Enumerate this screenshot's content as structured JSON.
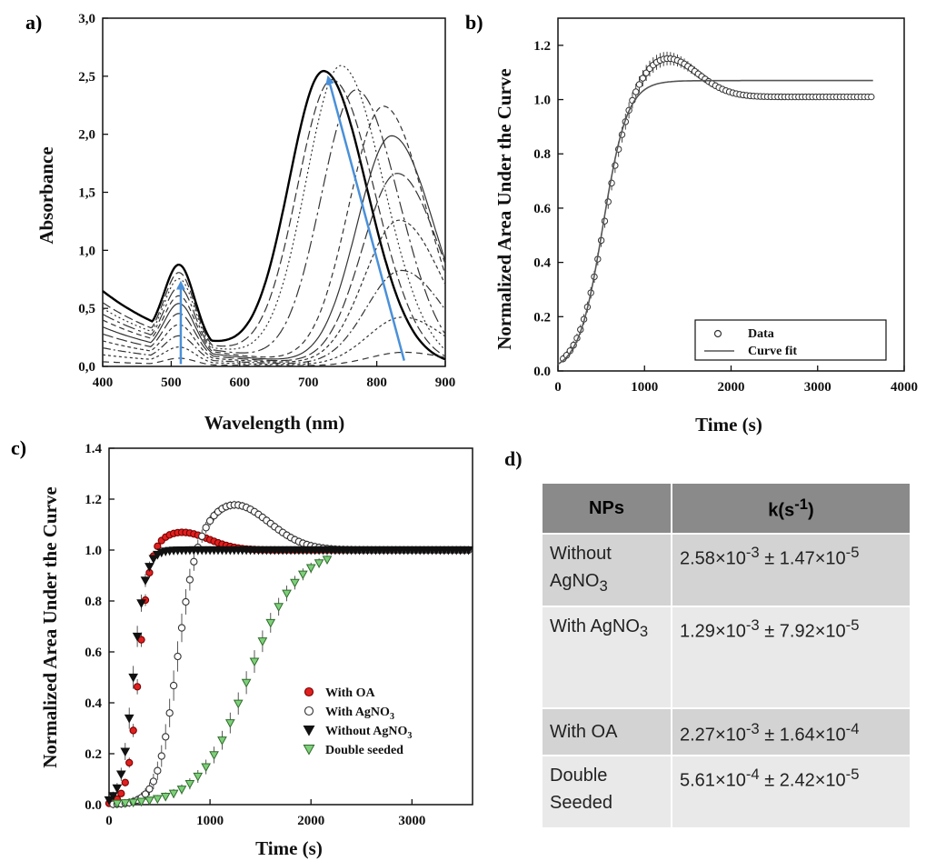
{
  "figure": {
    "panels": [
      {
        "letter": "a)",
        "chart_data": {
          "type": "line",
          "xlabel": "Wavelength (nm)",
          "ylabel": "Absorbance",
          "xlim": [
            400,
            900
          ],
          "ylim": [
            0.0,
            3.0
          ],
          "xticks": [
            "400",
            "500",
            "600",
            "700",
            "800",
            "900"
          ],
          "yticks": [
            "0,0",
            "0,5",
            "1,0",
            "1,5",
            "2,0",
            "2,5",
            "3,0"
          ],
          "arrow_color": "#4a90d9",
          "arrows": [
            {
              "from": [
                514,
                0.02
              ],
              "to": [
                514,
                0.7
              ]
            },
            {
              "from": [
                840,
                0.05
              ],
              "to": [
                730,
                2.47
              ]
            }
          ],
          "curves": [
            {
              "transverse": 0.7,
              "peak_nm": 723,
              "peak": 2.48,
              "floor": 0.65
            },
            {
              "transverse": 0.66,
              "peak_nm": 735,
              "peak": 2.42,
              "floor": 0.55
            },
            {
              "transverse": 0.62,
              "peak_nm": 748,
              "peak": 2.55,
              "floor": 0.5
            },
            {
              "transverse": 0.56,
              "peak_nm": 770,
              "peak": 2.35,
              "floor": 0.45
            },
            {
              "transverse": 0.5,
              "peak_nm": 810,
              "peak": 2.22,
              "floor": 0.4
            },
            {
              "transverse": 0.45,
              "peak_nm": 822,
              "peak": 1.97,
              "floor": 0.34
            },
            {
              "transverse": 0.38,
              "peak_nm": 830,
              "peak": 1.65,
              "floor": 0.28
            },
            {
              "transverse": 0.3,
              "peak_nm": 833,
              "peak": 1.25,
              "floor": 0.22
            },
            {
              "transverse": 0.22,
              "peak_nm": 836,
              "peak": 0.82,
              "floor": 0.16
            },
            {
              "transverse": 0.14,
              "peak_nm": 838,
              "peak": 0.42,
              "floor": 0.1
            },
            {
              "transverse": 0.06,
              "peak_nm": 840,
              "peak": 0.12,
              "floor": 0.04
            }
          ]
        }
      },
      {
        "letter": "b)",
        "chart_data": {
          "type": "scatter",
          "xlabel": "Time (s)",
          "ylabel": "Normalized Area Under the Curve",
          "xlim": [
            0,
            4000
          ],
          "ylim": [
            0.0,
            1.3
          ],
          "xticks": [
            "0",
            "1000",
            "2000",
            "3000",
            "4000"
          ],
          "yticks": [
            "0.0",
            "0.2",
            "0.4",
            "0.6",
            "0.8",
            "1.0",
            "1.2"
          ],
          "legend_position": "bottom-right",
          "legend": [
            "Data",
            "Curve fit"
          ],
          "data_model": {
            "t_start": 60,
            "t_end": 3640,
            "step": 40,
            "t50": 520,
            "rise": 150,
            "overshoot": 0.15,
            "overshoot_center": 1230,
            "overshoot_width": 520,
            "decay": 0.00025,
            "plateau": 1.01,
            "error": 0.03
          },
          "fit_model": {
            "t50": 520,
            "rise": 140,
            "plateau": 1.07,
            "t_end": 3640
          }
        }
      },
      {
        "letter": "c)",
        "chart_data": {
          "type": "scatter",
          "xlabel": "Time (s)",
          "ylabel": "Normalized Area Under the Curve",
          "xlim": [
            0,
            3600
          ],
          "ylim": [
            0.0,
            1.4
          ],
          "xticks": [
            "0",
            "1000",
            "2000",
            "3000"
          ],
          "yticks": [
            "0.0",
            "0.2",
            "0.4",
            "0.6",
            "0.8",
            "1.0",
            "1.2",
            "1.4"
          ],
          "legend_position": "bottom-right",
          "series": [
            {
              "name": "With OA",
              "marker": "circle",
              "fill": "#e02020",
              "stroke": "#7a0000",
              "t50": 290,
              "rise": 55,
              "overshoot": 0.07,
              "overshoot_center": 720,
              "overshoot_width": 380,
              "plateau": 1.0,
              "start": 0,
              "end": 3580,
              "step": 40,
              "error": 0.02
            },
            {
              "name": "With AgNO",
              "sub": "3",
              "marker": "circle",
              "fill": "#ffffff",
              "stroke": "#333333",
              "t50": 660,
              "rise": 95,
              "overshoot": 0.18,
              "overshoot_center": 1230,
              "overshoot_width": 500,
              "plateau": 1.0,
              "start": 40,
              "end": 3580,
              "step": 40,
              "error": 0.04
            },
            {
              "name": "Without AgNO",
              "sub": "3",
              "marker": "triangle-down",
              "fill": "#111111",
              "stroke": "#111111",
              "t50": 240,
              "rise": 60,
              "overshoot": 0.0,
              "overshoot_center": 600,
              "overshoot_width": 300,
              "plateau": 1.0,
              "start": 0,
              "end": 3580,
              "step": 40,
              "error": 0.03
            },
            {
              "name": "Double seeded",
              "marker": "triangle-down",
              "fill": "#7ed07a",
              "stroke": "#2e6b2a",
              "t50": 1380,
              "rise": 240,
              "overshoot": 0.0,
              "overshoot_center": 2000,
              "overshoot_width": 300,
              "plateau": 1.0,
              "start": 80,
              "end": 2160,
              "step": 80,
              "error": 0.03
            }
          ]
        }
      }
    ],
    "table": {
      "letter": "d)",
      "header": {
        "col1": "NPs",
        "col2": "k(s",
        "col2_sup": "-1",
        "col2_end": ")"
      },
      "rows": [
        {
          "np": "Without AgNO",
          "np_sub": "3",
          "m": "2.58",
          "me": "-3",
          "e": "1.47",
          "ee": "-5"
        },
        {
          "np": "With AgNO",
          "np_sub": "3",
          "m": "1.29",
          "me": "-3",
          "e": "7.92",
          "ee": "-5"
        },
        {
          "np": "With OA",
          "np_sub": "",
          "m": "2.27",
          "me": "-3",
          "e": "1.64",
          "ee": "-4"
        },
        {
          "np": "Double Seeded",
          "np_sub": "",
          "m": "5.61",
          "me": "-4",
          "e": "2.42",
          "ee": "-5"
        }
      ],
      "times": "×10",
      "pm": " ± "
    }
  }
}
